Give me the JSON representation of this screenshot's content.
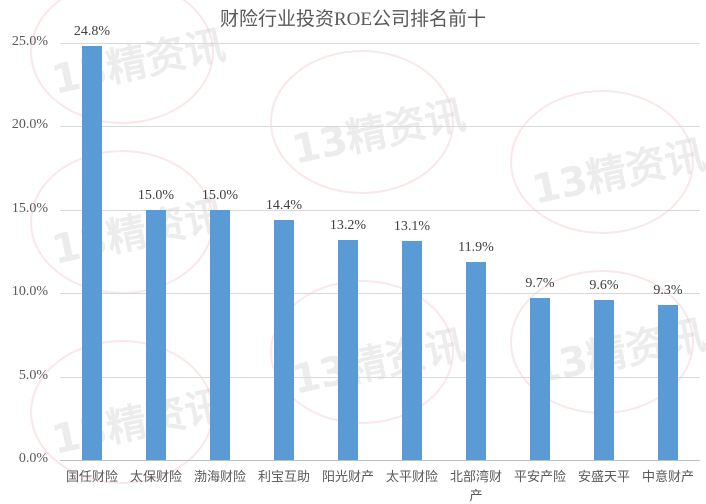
{
  "chart_data": {
    "type": "bar",
    "title": "财险行业投资ROE公司排名前十",
    "xlabel": "",
    "ylabel": "",
    "categories": [
      "国任财险",
      "太保财险",
      "渤海财险",
      "利宝互助",
      "阳光财产",
      "太平财险",
      "北部湾财产",
      "平安产险",
      "安盛天平",
      "中意财产"
    ],
    "values": [
      24.8,
      15.0,
      15.0,
      14.4,
      13.2,
      13.1,
      11.9,
      9.7,
      9.6,
      9.3
    ],
    "value_labels": [
      "24.8%",
      "15.0%",
      "15.0%",
      "14.4%",
      "13.2%",
      "13.1%",
      "11.9%",
      "9.7%",
      "9.6%",
      "9.3%"
    ],
    "y_ticks": [
      "0.0%",
      "5.0%",
      "10.0%",
      "15.0%",
      "20.0%",
      "25.0%"
    ],
    "ylim": [
      0,
      25
    ],
    "grid": true,
    "legend": "none",
    "bar_color": "#5b9bd5",
    "watermark": "13精资讯"
  }
}
